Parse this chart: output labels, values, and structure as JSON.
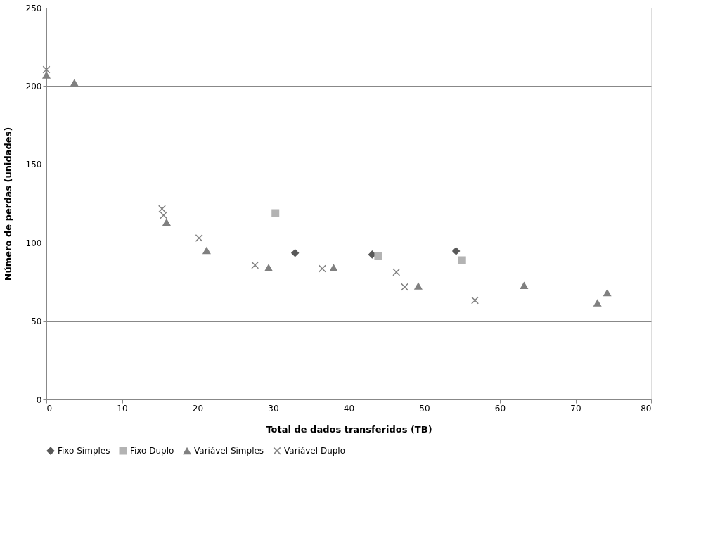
{
  "chart_data": {
    "type": "scatter",
    "xlabel": "Total de dados transferidos (TB)",
    "ylabel": "Número de perdas (unidades)",
    "xlim": [
      0,
      80
    ],
    "xticks": [
      0,
      10,
      20,
      30,
      40,
      50,
      60,
      70,
      80
    ],
    "ylim": [
      0,
      250
    ],
    "yticks": [
      0,
      50,
      100,
      150,
      200,
      250
    ],
    "grid": "y",
    "legend": "bottom",
    "series": [
      {
        "name": "Fixo Simples",
        "color": "#595959",
        "marker": "diamond",
        "x": [
          32.9,
          43.1,
          54.2
        ],
        "values": [
          93.5,
          92.5,
          94.7
        ]
      },
      {
        "name": "Fixo Duplo",
        "color": "#b3b3b3",
        "marker": "square",
        "x": [
          30.3,
          43.9,
          55.0
        ],
        "values": [
          118.9,
          91.6,
          88.9
        ]
      },
      {
        "name": "Variável Simples",
        "color": "#808080",
        "marker": "triangle",
        "x": [
          0,
          3.7,
          15.9,
          21.2,
          29.4,
          38.0,
          49.2,
          63.2,
          72.9,
          74.2
        ],
        "values": [
          207,
          202,
          113,
          95,
          84,
          84,
          72.3,
          72.7,
          61.5,
          68
        ]
      },
      {
        "name": "Variável Duplo",
        "color": "#7f7f7f",
        "marker": "cross",
        "x": [
          0,
          15.3,
          15.5,
          20.2,
          27.6,
          36.5,
          46.3,
          47.4,
          56.7
        ],
        "values": [
          210.5,
          121.6,
          117.6,
          103,
          85.7,
          83.5,
          81.2,
          71.8,
          63.3
        ]
      }
    ]
  }
}
